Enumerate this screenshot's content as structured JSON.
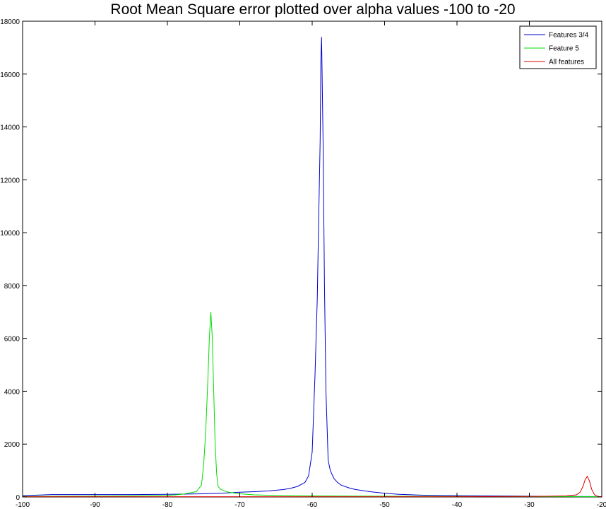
{
  "chart_data": {
    "type": "line",
    "title": "Root Mean Square error plotted over alpha values -100 to -20",
    "xlabel": "",
    "ylabel": "",
    "xlim": [
      -100,
      -20
    ],
    "ylim": [
      0,
      18000
    ],
    "xticks": [
      -100,
      -90,
      -80,
      -70,
      -60,
      -50,
      -40,
      -30,
      -20
    ],
    "yticks": [
      0,
      2000,
      4000,
      6000,
      8000,
      10000,
      12000,
      14000,
      16000,
      18000
    ],
    "grid": false,
    "legend_position": "top-right",
    "series": [
      {
        "name": "Features 3/4",
        "color": "#0000cc",
        "x": [
          -100,
          -96,
          -90,
          -85,
          -80,
          -75,
          -72,
          -70,
          -68,
          -66,
          -64,
          -63,
          -62,
          -61,
          -60.5,
          -60,
          -59.6,
          -59.3,
          -59.1,
          -58.9,
          -58.8,
          -58.7,
          -58.5,
          -58.3,
          -58.1,
          -57.8,
          -57.5,
          -57,
          -56.5,
          -56,
          -55,
          -54,
          -52,
          -50,
          -48,
          -45,
          -40,
          -35,
          -30,
          -25,
          -22,
          -20
        ],
        "y": [
          50,
          90,
          90,
          90,
          100,
          120,
          150,
          180,
          200,
          230,
          280,
          330,
          400,
          550,
          800,
          1700,
          4700,
          7500,
          10500,
          13500,
          16500,
          17400,
          13500,
          8000,
          4000,
          1400,
          1000,
          700,
          550,
          450,
          350,
          280,
          200,
          140,
          100,
          70,
          50,
          40,
          30,
          20,
          15,
          10
        ]
      },
      {
        "name": "Feature 5",
        "color": "#00dd00",
        "x": [
          -100,
          -90,
          -85,
          -80,
          -78,
          -76,
          -75.3,
          -75,
          -74.7,
          -74.4,
          -74.2,
          -74,
          -73.8,
          -73.6,
          -73.4,
          -73.2,
          -73,
          -72.7,
          -72.3,
          -71.5,
          -70,
          -68,
          -65,
          -60,
          -50,
          -40,
          -30,
          -20
        ],
        "y": [
          20,
          30,
          40,
          60,
          100,
          200,
          450,
          1200,
          2500,
          4500,
          6000,
          7000,
          6000,
          4000,
          2000,
          900,
          400,
          300,
          250,
          180,
          120,
          80,
          60,
          40,
          30,
          20,
          15,
          10
        ]
      },
      {
        "name": "All features",
        "color": "#dd0000",
        "x": [
          -100,
          -90,
          -80,
          -70,
          -60,
          -50,
          -40,
          -30,
          -25,
          -23.5,
          -23,
          -22.6,
          -22.3,
          -22,
          -21.7,
          -21.4,
          -21,
          -20.5,
          -20
        ],
        "y": [
          10,
          10,
          10,
          10,
          10,
          10,
          10,
          20,
          40,
          80,
          180,
          400,
          650,
          780,
          600,
          300,
          80,
          20,
          10
        ]
      }
    ]
  }
}
